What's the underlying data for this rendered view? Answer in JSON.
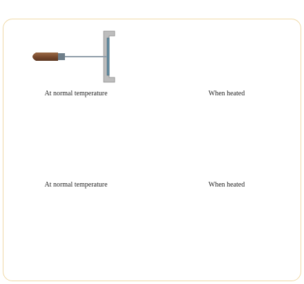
{
  "captions": {
    "panel1_left": "At normal temperature",
    "panel1_right": "When heated",
    "panel2_left": "At normal temperature",
    "panel2_right": "When heated"
  },
  "colors": {
    "border": "#f0d9a6",
    "handle": "#7a4b2e",
    "rod": "#9aa8b4",
    "steel": "#5f8aa0",
    "frame_gray": "#b9b9b9",
    "ring_top": "#f2f2f2",
    "ring_side": "#c8c8c8",
    "ball": "#4d7c8f",
    "table": "#6b4a2b",
    "flame": "#f2a531"
  },
  "icons": {
    "arrow": "right-arrow-icon",
    "flame": "flame-icon"
  }
}
